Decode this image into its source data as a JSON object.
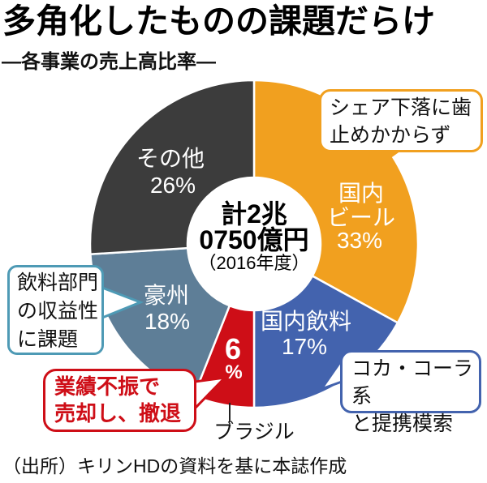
{
  "header": {
    "title": "多角化したものの課題だらけ",
    "subtitle": "―各事業の売上高比率―"
  },
  "chart_data": {
    "type": "pie",
    "title": "各事業の売上高比率",
    "unit": "%",
    "center": {
      "line1": "計2兆",
      "line2": "0750億円",
      "note": "（2016年度）"
    },
    "slices": [
      {
        "id": "domestic-beer",
        "name": "国内ビール",
        "value": 33,
        "color": "#F1A01F",
        "label_lines": [
          "国内",
          "ビール",
          "33%"
        ]
      },
      {
        "id": "domestic-beverage",
        "name": "国内飲料",
        "value": 17,
        "color": "#4363AE",
        "label_lines": [
          "国内飲料",
          "17%"
        ]
      },
      {
        "id": "brazil",
        "name": "ブラジル",
        "value": 6,
        "color": "#CE0E17",
        "label_lines": [
          "6",
          "%"
        ]
      },
      {
        "id": "australia",
        "name": "豪州",
        "value": 18,
        "color": "#5E7E97",
        "label_lines": [
          "豪州",
          "18%"
        ]
      },
      {
        "id": "others",
        "name": "その他",
        "value": 26,
        "color": "#3C3C3C",
        "label_lines": [
          "その他",
          "26%"
        ]
      }
    ]
  },
  "callouts": {
    "beer": {
      "line1": "シェア下落に歯",
      "line2": "止めかからず",
      "color": "#F1A01F"
    },
    "beverage": {
      "line1": "コカ・コーラ系",
      "line2": "と提携模索",
      "color": "#4363AE"
    },
    "australia": {
      "line1": "飲料部門",
      "line2": "の収益性",
      "line3": "に課題",
      "color": "#4E9AB5"
    },
    "brazil": {
      "line1": "業績不振で",
      "line2": "売却し、撤退",
      "color": "#CE0E17"
    }
  },
  "source": "（出所）キリンHDの資料を基に本誌作成"
}
